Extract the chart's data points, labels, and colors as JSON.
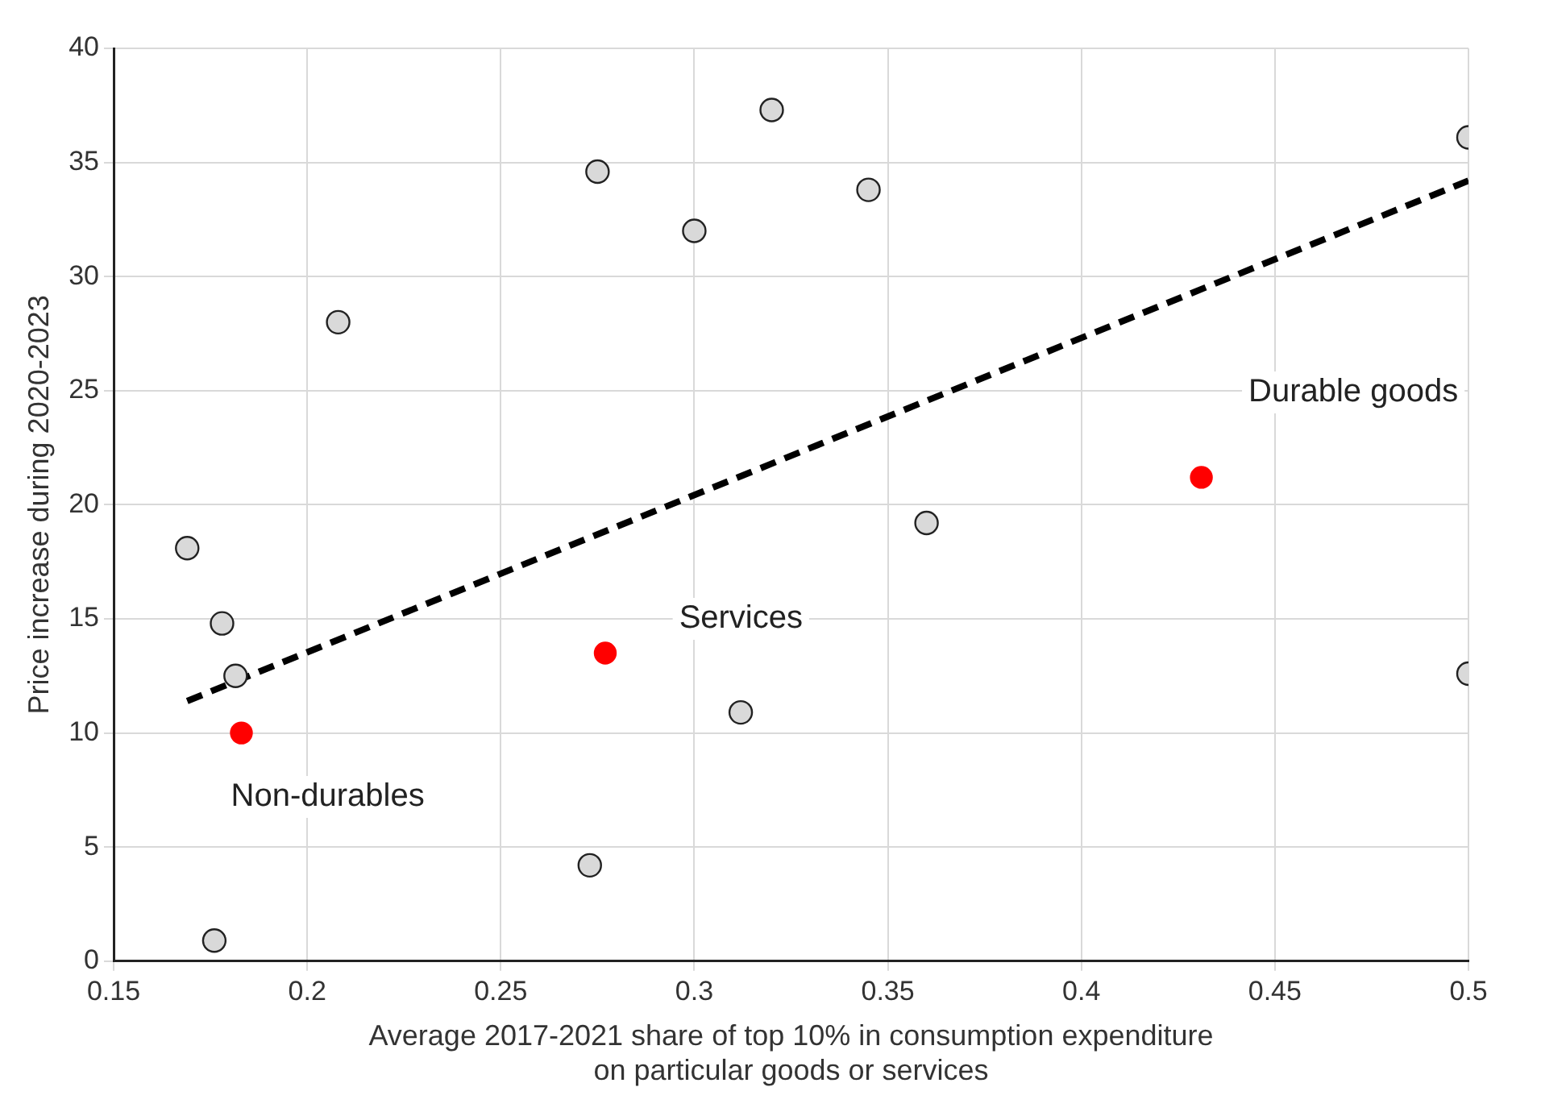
{
  "chart_data": {
    "type": "scatter",
    "xlabel": "Average 2017-2021 share of top 10% in consumption expenditure\non particular goods or services",
    "ylabel": "Price increase during 2020-2023",
    "xlim": [
      0.15,
      0.5
    ],
    "xticks": [
      0.15,
      0.2,
      0.25,
      0.3,
      0.35,
      0.4,
      0.45,
      0.5
    ],
    "ylim": [
      0,
      40
    ],
    "yticks": [
      0,
      5,
      10,
      15,
      20,
      25,
      30,
      35,
      40
    ],
    "grid": true,
    "legend": false,
    "marker": "circle",
    "series": [
      {
        "color": "#d9d9d9",
        "x": [
          0.169,
          0.178,
          0.1815,
          0.176,
          0.208,
          0.275,
          0.273,
          0.3,
          0.32,
          0.312,
          0.345,
          0.36,
          0.5,
          0.5
        ],
        "values": [
          18.1,
          14.8,
          12.5,
          0.9,
          28.0,
          34.6,
          4.2,
          32.0,
          37.3,
          10.9,
          33.8,
          19.2,
          36.1,
          12.6
        ]
      },
      {
        "color": "#ff0000",
        "x": [
          0.183,
          0.277,
          0.431
        ],
        "values": [
          10.0,
          13.5,
          21.2
        ]
      },
      {
        "type": "line",
        "color": "#000000",
        "line_style": "dashed",
        "marker": "none",
        "x": [
          0.169,
          0.5
        ],
        "values": [
          11.4,
          34.2
        ]
      }
    ],
    "annotations": [
      "Non-durables",
      "Services",
      "Durable goods"
    ]
  }
}
